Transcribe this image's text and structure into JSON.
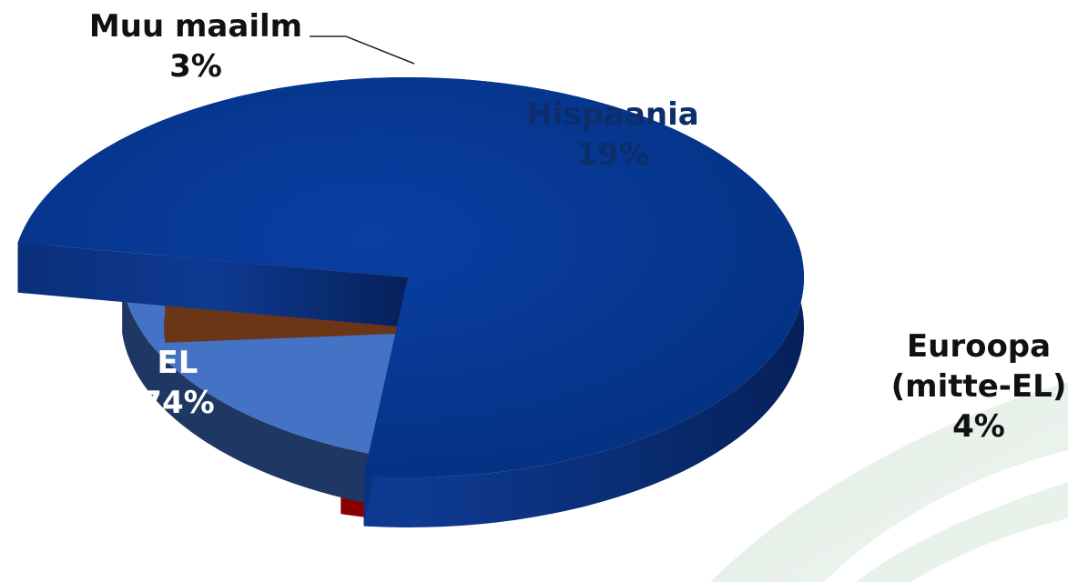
{
  "chart_data": {
    "type": "pie",
    "style": "3d-exploded",
    "slices": [
      {
        "key": "el",
        "label": "EL",
        "value": 74,
        "value_label": "74%",
        "color": "#033794"
      },
      {
        "key": "muu",
        "label": "Muu maailm",
        "value": 3,
        "value_label": "3%",
        "color": "#ee1111"
      },
      {
        "key": "hisp",
        "label": "Hispaania",
        "value": 19,
        "value_label": "19%",
        "color": "#4472c4"
      },
      {
        "key": "euro",
        "label": "Euroopa (mitte-EL)",
        "label_lines": [
          "Euroopa",
          "(mitte-EL)"
        ],
        "value": 4,
        "value_label": "4%",
        "color": "#e8802f"
      }
    ],
    "legend": "none"
  }
}
